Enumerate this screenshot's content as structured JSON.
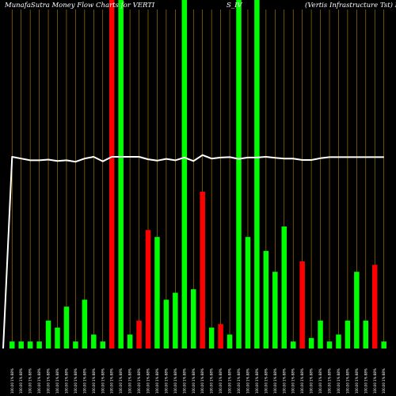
{
  "chart_data": {
    "type": "bar",
    "title_left": "MunafaSutra  Money Flow  Charts for VERTI",
    "title_mid": "S_IV",
    "title_right": "(Vertis Infrastructure   Tst) Munafa",
    "colors": {
      "background": "#000000",
      "up": "#00ff00",
      "down": "#ff0000",
      "grid": "#b8860b",
      "line": "#ffffff"
    },
    "grid": true,
    "categories": [
      "100.00 1% 88%",
      "100.00 1% 88%",
      "100.00 1% 88%",
      "100.00 1% 88%",
      "100.00 1% 88%",
      "100.00 1% 88%",
      "100.00 1% 88%",
      "100.00 1% 88%",
      "100.00 1% 88%",
      "100.00 1% 88%",
      "100.00 1% 88%",
      "100.00 1% 88%",
      "100.00 1% 88%",
      "100.00 1% 88%",
      "100.00 1% 88%",
      "100.00 1% 88%",
      "100.00 1% 88%",
      "100.00 1% 88%",
      "100.00 1% 88%",
      "100.00 1% 88%",
      "100.00 1% 88%",
      "100.00 1% 88%",
      "100.00 1% 88%",
      "100.00 1% 88%",
      "100.00 1% 88%",
      "100.00 1% 88%",
      "100.00 1% 88%",
      "100.00 1% 88%",
      "100.00 1% 88%",
      "100.00 1% 88%",
      "100.00 1% 88%",
      "100.00 1% 88%",
      "100.00 1% 88%",
      "100.00 1% 88%",
      "100.00 1% 88%",
      "100.00 1% 88%",
      "100.00 1% 88%",
      "100.00 1% 88%",
      "100.00 1% 88%",
      "100.00 1% 88%",
      "100.00 1% 88%",
      "100.00 1% 88%"
    ],
    "values": [
      2,
      2,
      2,
      2,
      8,
      6,
      12,
      2,
      14,
      4,
      2,
      100,
      100,
      4,
      8,
      34,
      32,
      14,
      16,
      100,
      17,
      45,
      6,
      7,
      4,
      100,
      32,
      100,
      28,
      22,
      35,
      2,
      25,
      3,
      8,
      2,
      4,
      8,
      22,
      8,
      24,
      2
    ],
    "bar_colors": [
      "up",
      "up",
      "up",
      "up",
      "up",
      "up",
      "up",
      "up",
      "up",
      "up",
      "up",
      "down",
      "up",
      "up",
      "down",
      "down",
      "up",
      "up",
      "up",
      "up",
      "up",
      "down",
      "up",
      "down",
      "up",
      "up",
      "up",
      "up",
      "up",
      "up",
      "up",
      "up",
      "down",
      "up",
      "up",
      "up",
      "up",
      "up",
      "up",
      "up",
      "down",
      "up"
    ],
    "line_values": [
      55,
      54.5,
      54,
      54,
      54.2,
      53.8,
      54,
      53.6,
      54.5,
      55,
      53.7,
      55,
      55,
      55,
      55,
      54.3,
      53.9,
      54.4,
      54,
      54.8,
      53.8,
      55.5,
      54.5,
      54.8,
      54.9,
      54.4,
      54.8,
      54.8,
      55,
      54.7,
      54.5,
      54.5,
      54.1,
      54.1,
      54.6,
      54.9,
      54.9,
      54.9,
      54.9,
      54.9,
      54.9,
      54.9
    ],
    "ylim": [
      0,
      100
    ]
  }
}
